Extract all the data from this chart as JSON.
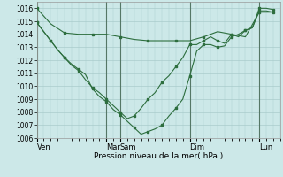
{
  "bg_color": "#cce8e8",
  "grid_color": "#aacccc",
  "line_color": "#2d6e3e",
  "marker_color": "#2d6e3e",
  "xlabel": "Pression niveau de la mer( hPa )",
  "ylim": [
    1006,
    1016.5
  ],
  "yticks": [
    1006,
    1007,
    1008,
    1009,
    1010,
    1011,
    1012,
    1013,
    1014,
    1015,
    1016
  ],
  "day_labels": [
    "Ven",
    "Mar",
    "Sam",
    "Dim",
    "Lun"
  ],
  "day_positions": [
    0,
    60,
    72,
    132,
    192
  ],
  "xlim": [
    0,
    210
  ],
  "line1_x": [
    0,
    12,
    24,
    36,
    48,
    60,
    72,
    84,
    96,
    108,
    120,
    132,
    144,
    156,
    168,
    180,
    192,
    204
  ],
  "line1_y": [
    1016.0,
    1014.8,
    1014.1,
    1014.0,
    1014.0,
    1014.0,
    1013.8,
    1013.6,
    1013.5,
    1013.5,
    1013.5,
    1013.5,
    1013.8,
    1014.2,
    1014.0,
    1013.8,
    1015.7,
    1015.7
  ],
  "line2_x": [
    0,
    6,
    12,
    18,
    24,
    30,
    36,
    42,
    48,
    54,
    60,
    66,
    72,
    78,
    84,
    90,
    96,
    102,
    108,
    114,
    120,
    126,
    132,
    138,
    144,
    150,
    156,
    162,
    168,
    174,
    180,
    186,
    192,
    198,
    204
  ],
  "line2_y": [
    1014.9,
    1014.2,
    1013.5,
    1012.8,
    1012.2,
    1011.6,
    1011.2,
    1010.5,
    1009.9,
    1009.5,
    1009.0,
    1008.5,
    1008.0,
    1007.5,
    1007.7,
    1008.3,
    1009.0,
    1009.5,
    1010.3,
    1010.8,
    1011.5,
    1012.2,
    1013.2,
    1013.2,
    1013.5,
    1013.8,
    1013.5,
    1013.3,
    1014.0,
    1013.8,
    1014.3,
    1014.5,
    1015.8,
    1015.8,
    1015.7
  ],
  "line3_x": [
    0,
    6,
    12,
    18,
    24,
    30,
    36,
    42,
    48,
    54,
    60,
    66,
    72,
    78,
    84,
    90,
    96,
    102,
    108,
    114,
    120,
    126,
    132,
    138,
    144,
    150,
    156,
    162,
    168,
    174,
    180,
    186,
    192,
    198,
    204
  ],
  "line3_y": [
    1014.9,
    1014.2,
    1013.5,
    1012.8,
    1012.2,
    1011.7,
    1011.3,
    1010.9,
    1009.8,
    1009.2,
    1008.8,
    1008.2,
    1007.8,
    1007.3,
    1006.8,
    1006.3,
    1006.5,
    1006.7,
    1007.0,
    1007.7,
    1008.3,
    1009.0,
    1010.8,
    1012.7,
    1013.2,
    1013.2,
    1013.0,
    1013.1,
    1013.8,
    1014.0,
    1014.3,
    1014.5,
    1016.0,
    1016.0,
    1015.9
  ]
}
